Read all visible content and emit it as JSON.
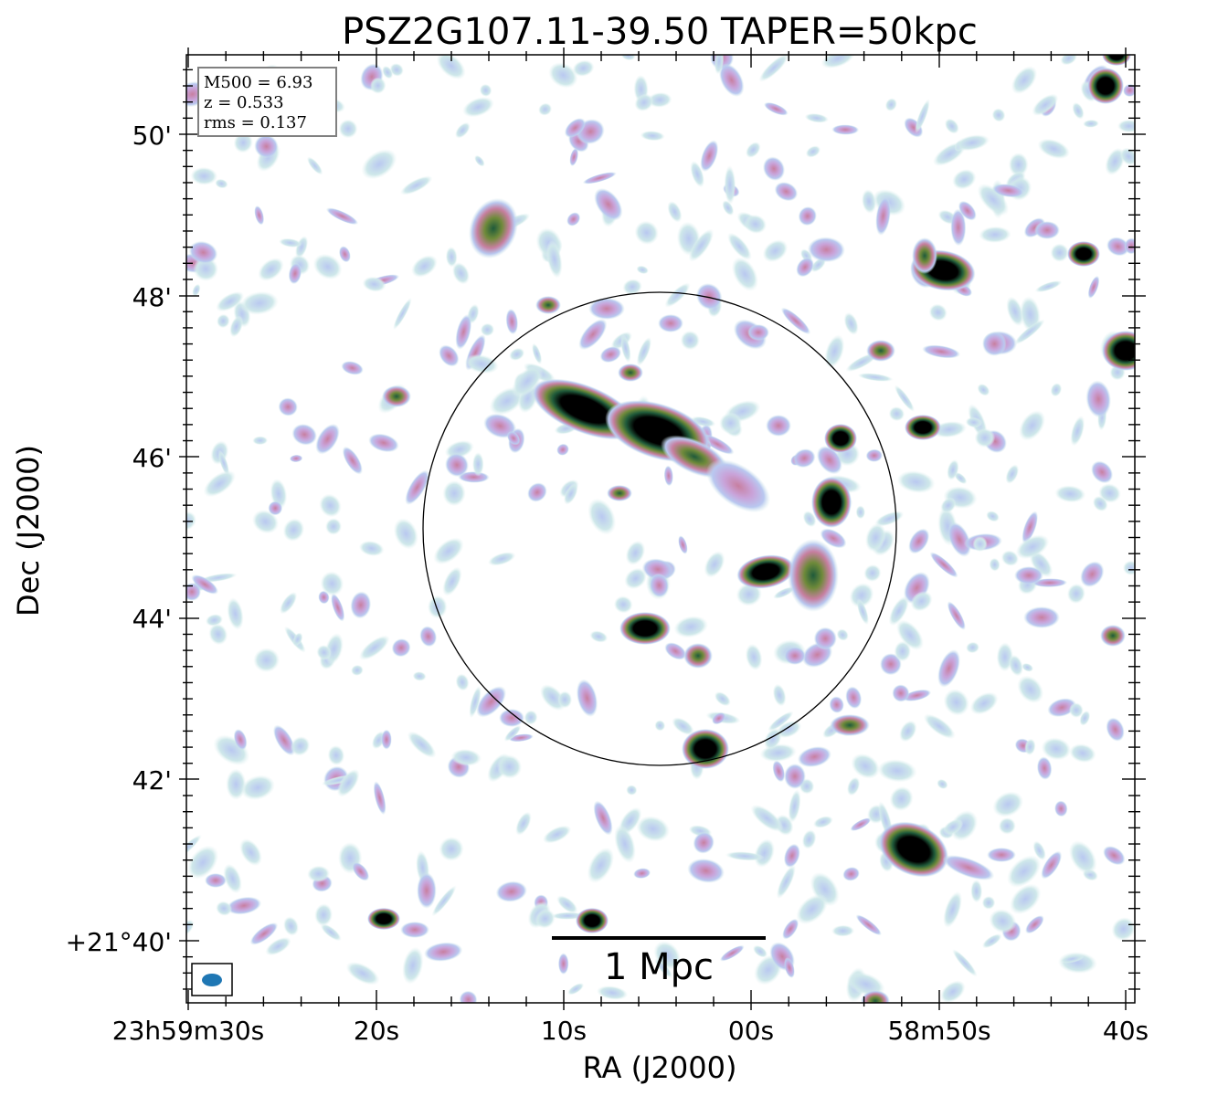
{
  "figure": {
    "title": "PSZ2G107.11-39.50 TAPER=50kpc",
    "xlabel": "RA (J2000)",
    "ylabel": "Dec (J2000)",
    "xticks": [
      "23h59m30s",
      "20s",
      "10s",
      "00s",
      "58m50s",
      "40s"
    ],
    "yticks": [
      "50'",
      "48'",
      "46'",
      "44'",
      "42'",
      "+21°40'"
    ],
    "info_box": {
      "m500": "M500 = 6.93",
      "z": "z = 0.533",
      "rms": "rms = 0.137"
    },
    "scalebar_label": "1 Mpc",
    "colors": {
      "frame": "#000000",
      "beam": "#1f77b4",
      "circle": "#000000",
      "colormap": [
        "#ffffff",
        "#cfe8ea",
        "#b9c8f0",
        "#c9a3d9",
        "#c77fa0",
        "#6f8a3a",
        "#1f5a3a",
        "#000000"
      ]
    }
  }
}
